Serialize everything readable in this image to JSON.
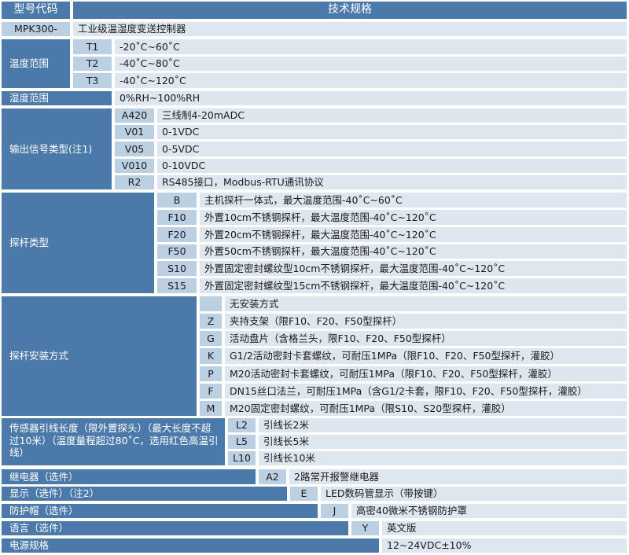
{
  "header": {
    "model_code": "型号代码",
    "spec": "技术规格"
  },
  "model": {
    "code": "MPK300-",
    "desc": "工业级温湿度变送控制器"
  },
  "temperature": {
    "label": "温度范围",
    "options": [
      {
        "code": "T1",
        "desc": "-20˚C~60˚C"
      },
      {
        "code": "T2",
        "desc": "-40˚C~80˚C"
      },
      {
        "code": "T3",
        "desc": "-40˚C~120˚C"
      }
    ]
  },
  "humidity": {
    "label": "湿度范围",
    "desc": "0%RH~100%RH"
  },
  "output": {
    "label": "输出信号类型(注1)",
    "options": [
      {
        "code": "A420",
        "desc": "三线制4-20mADC"
      },
      {
        "code": "V01",
        "desc": "0-1VDC"
      },
      {
        "code": "V05",
        "desc": "0-5VDC"
      },
      {
        "code": "V010",
        "desc": "0-10VDC"
      },
      {
        "code": "R2",
        "desc": "RS485接口，Modbus-RTU通讯协议"
      }
    ]
  },
  "probe": {
    "label": "探杆类型",
    "options": [
      {
        "code": "B",
        "desc": "主机探杆一体式，最大温度范围-40˚C~60˚C"
      },
      {
        "code": "F10",
        "desc": "外置10cm不锈钢探杆，最大温度范围-40˚C~120˚C"
      },
      {
        "code": "F20",
        "desc": "外置20cm不锈钢探杆，最大温度范围-40˚C~120˚C"
      },
      {
        "code": "F50",
        "desc": "外置50cm不锈钢探杆，最大温度范围-40˚C~120˚C"
      },
      {
        "code": "S10",
        "desc": "外置固定密封螺纹型10cm不锈钢探杆，最大温度范围-40˚C~120˚C"
      },
      {
        "code": "S15",
        "desc": "外置固定密封螺纹型15cm不锈钢探杆，最大温度范围-40˚C~120˚C"
      }
    ]
  },
  "install": {
    "label": "探杆安装方式",
    "options": [
      {
        "code": "",
        "desc": "无安装方式"
      },
      {
        "code": "Z",
        "desc": "夹持支架（限F10、F20、F50型探杆）"
      },
      {
        "code": "G",
        "desc": "活动盘片（含格兰头，限F10、F20、F50型探杆）"
      },
      {
        "code": "K",
        "desc": "G1/2活动密封卡套螺纹，可耐压1MPa（限F10、F20、F50型探杆，灌胶）"
      },
      {
        "code": "P",
        "desc": "M20活动密封卡套螺纹，可耐压1MPa（限F10、F20、F50型探杆，灌胶）"
      },
      {
        "code": "F",
        "desc": "DN15丝口法兰，可耐压1MPa（含G1/2卡套，限F10、F20、F50型探杆，灌胶）"
      },
      {
        "code": "M",
        "desc": "M20固定密封螺纹，可耐压1MPa（限S10、S20型探杆，灌胶）"
      }
    ]
  },
  "lead": {
    "label": "传感器引线长度（限外置探头）（最大长度不超过10米）（温度量程超过80˚C，选用红色高温引线）",
    "options": [
      {
        "code": "L2",
        "desc": "引线长2米"
      },
      {
        "code": "L5",
        "desc": "引线长5米"
      },
      {
        "code": "L10",
        "desc": "引线长10米"
      }
    ]
  },
  "relay": {
    "label": "继电器（选件）",
    "code": "A2",
    "desc": "2路常开报警继电器"
  },
  "display": {
    "label": "显示（选件）（注2）",
    "code": "E",
    "desc": "LED数码管显示（带按键）"
  },
  "cap": {
    "label": "防护帽（选件）",
    "code": "J",
    "desc": "高密40微米不锈钢防护罩"
  },
  "language": {
    "label": "语言（选件）",
    "code": "Y",
    "desc": "英文版"
  },
  "power": {
    "label": "电源规格",
    "desc": "12~24VDC±10%"
  },
  "colors": {
    "label_bg": "#4b79a9",
    "code_bg": "#bcd0e3",
    "desc_bg": "#dee7f0"
  }
}
